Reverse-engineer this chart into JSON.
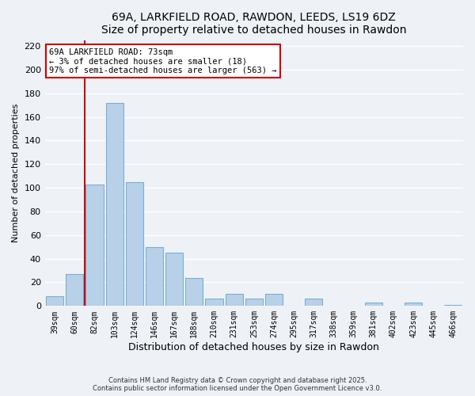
{
  "title": "69A, LARKFIELD ROAD, RAWDON, LEEDS, LS19 6DZ",
  "subtitle": "Size of property relative to detached houses in Rawdon",
  "xlabel": "Distribution of detached houses by size in Rawdon",
  "ylabel": "Number of detached properties",
  "bar_labels": [
    "39sqm",
    "60sqm",
    "82sqm",
    "103sqm",
    "124sqm",
    "146sqm",
    "167sqm",
    "188sqm",
    "210sqm",
    "231sqm",
    "253sqm",
    "274sqm",
    "295sqm",
    "317sqm",
    "338sqm",
    "359sqm",
    "381sqm",
    "402sqm",
    "423sqm",
    "445sqm",
    "466sqm"
  ],
  "bar_values": [
    8,
    27,
    103,
    172,
    105,
    50,
    45,
    24,
    6,
    10,
    6,
    10,
    0,
    6,
    0,
    0,
    3,
    0,
    3,
    0,
    1
  ],
  "bar_color": "#b8d0e8",
  "bar_edge_color": "#7aafd4",
  "vline_x": 1.5,
  "vline_color": "#cc0000",
  "annotation_title": "69A LARKFIELD ROAD: 73sqm",
  "annotation_line1": "← 3% of detached houses are smaller (18)",
  "annotation_line2": "97% of semi-detached houses are larger (563) →",
  "annotation_box_facecolor": "white",
  "annotation_box_edgecolor": "#cc0000",
  "ylim": [
    0,
    225
  ],
  "yticks": [
    0,
    20,
    40,
    60,
    80,
    100,
    120,
    140,
    160,
    180,
    200,
    220
  ],
  "footer1": "Contains HM Land Registry data © Crown copyright and database right 2025.",
  "footer2": "Contains public sector information licensed under the Open Government Licence v3.0.",
  "background_color": "#eef2f7",
  "grid_color": "#ffffff"
}
